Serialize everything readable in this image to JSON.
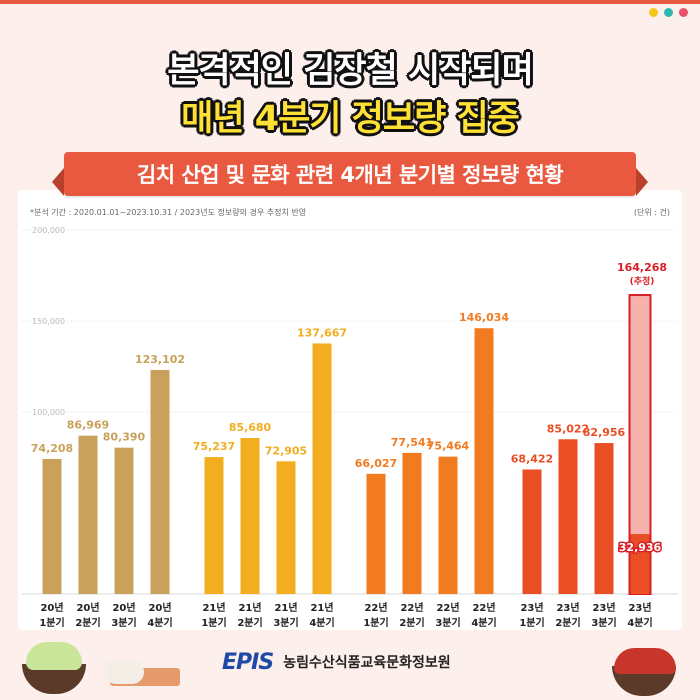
{
  "headline": {
    "line1": "본격적인 김장철 시작되며",
    "line2": "매년 4분기 정보량 집중"
  },
  "ribbon_title": "김치 산업 및 문화 관련 4개년 분기별 정보량 현황",
  "note_left": "*분석 기간 : 2020.01.01~2023.10.31 / 2023년도 정보량의 경우 추정치 반영",
  "note_right": "(단위 : 건)",
  "footer": {
    "logo_text": "EPIS",
    "org_name": "농림수산식품교육문화정보원"
  },
  "colors": {
    "accent_red": "#e8593f",
    "bg": "#fdf0ec",
    "year2020": "#c9a15a",
    "year2021": "#f2ae1f",
    "year2022": "#f27a1f",
    "year2023": "#ea4e25",
    "estimate_fill": "#f7b1ae",
    "estimate_stroke": "#d81f26",
    "dot_yellow": "#f5c518",
    "dot_teal": "#2bb8b0",
    "dot_red": "#ea4e6a"
  },
  "chart_data": {
    "type": "bar",
    "ylim": [
      0,
      200000
    ],
    "yticks": [
      {
        "value": 0,
        "label": ""
      },
      {
        "value": 100000,
        "label": "100,000"
      },
      {
        "value": 150000,
        "label": "150,000"
      },
      {
        "value": 200000,
        "label": "200,000"
      }
    ],
    "categories": [
      "20년 1분기",
      "20년 2분기",
      "20년 3분기",
      "20년 4분기",
      "21년 1분기",
      "21년 2분기",
      "21년 3분기",
      "21년 4분기",
      "22년 1분기",
      "22년 2분기",
      "22년 3분기",
      "22년 4분기",
      "23년 1분기",
      "23년 2분기",
      "23년 3분기",
      "23년 4분기"
    ],
    "category_lines": [
      [
        "20년",
        "1분기"
      ],
      [
        "20년",
        "2분기"
      ],
      [
        "20년",
        "3분기"
      ],
      [
        "20년",
        "4분기"
      ],
      [
        "21년",
        "1분기"
      ],
      [
        "21년",
        "2분기"
      ],
      [
        "21년",
        "3분기"
      ],
      [
        "21년",
        "4분기"
      ],
      [
        "22년",
        "1분기"
      ],
      [
        "22년",
        "2분기"
      ],
      [
        "22년",
        "3분기"
      ],
      [
        "22년",
        "4분기"
      ],
      [
        "23년",
        "1분기"
      ],
      [
        "23년",
        "2분기"
      ],
      [
        "23년",
        "3분기"
      ],
      [
        "23년",
        "4분기"
      ]
    ],
    "values": [
      74208,
      86969,
      80390,
      123102,
      75237,
      85680,
      72905,
      137667,
      66027,
      77541,
      75464,
      146034,
      68422,
      85022,
      82956,
      32936
    ],
    "labels": [
      "74,208",
      "86,969",
      "80,390",
      "123,102",
      "75,237",
      "85,680",
      "72,905",
      "137,667",
      "66,027",
      "77,541",
      "75,464",
      "146,034",
      "68,422",
      "85,022",
      "82,956",
      "32,936"
    ],
    "year_color_keys": [
      "year2020",
      "year2020",
      "year2020",
      "year2020",
      "year2021",
      "year2021",
      "year2021",
      "year2021",
      "year2022",
      "year2022",
      "year2022",
      "year2022",
      "year2023",
      "year2023",
      "year2023",
      "year2023"
    ],
    "estimate": {
      "index": 15,
      "value": 164268,
      "label": "164,268",
      "sublabel": "(추정)"
    }
  }
}
